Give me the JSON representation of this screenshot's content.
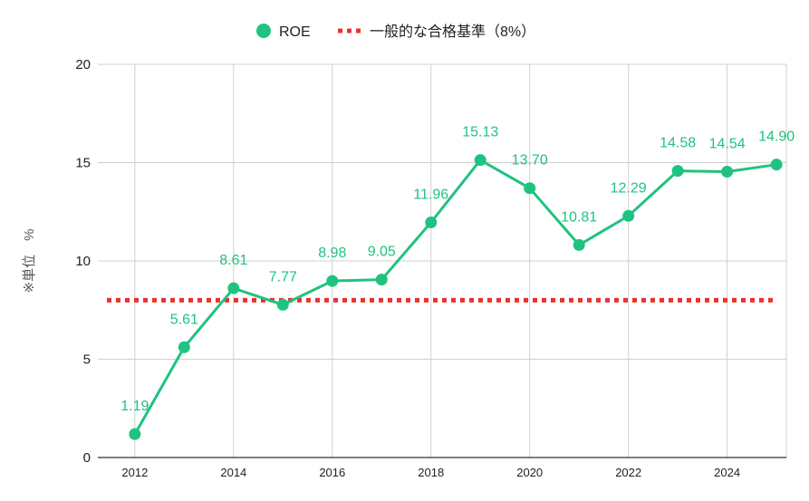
{
  "chart_data": {
    "type": "line",
    "title": "",
    "ylabel": "※単位　%",
    "xlabel": "",
    "ylim": [
      0,
      20
    ],
    "yticks": [
      "0",
      "5",
      "10",
      "15",
      "20"
    ],
    "xlim": [
      2011.25,
      2025.2
    ],
    "xticks": [
      "2012",
      "2014",
      "2016",
      "2018",
      "2020",
      "2022",
      "2024"
    ],
    "grid": true,
    "legend_position": "top-center",
    "series": [
      {
        "name": "ROE",
        "color": "#1fc37f",
        "x": [
          2012,
          2013,
          2014,
          2015,
          2016,
          2017,
          2018,
          2019,
          2020,
          2021,
          2022,
          2023,
          2024,
          2025
        ],
        "values": [
          1.19,
          5.61,
          8.61,
          7.77,
          8.98,
          9.05,
          11.96,
          15.13,
          13.7,
          10.81,
          12.29,
          14.58,
          14.54,
          14.9
        ],
        "labels": [
          "1.19",
          "5.61",
          "8.61",
          "7.77",
          "8.98",
          "9.05",
          "11.96",
          "15.13",
          "13.70",
          "10.81",
          "12.29",
          "14.58",
          "14.54",
          "14.90"
        ]
      },
      {
        "name": "一般的な合格基準（8%）",
        "color": "#e8332e",
        "style": "dotted",
        "constant": 8
      }
    ]
  }
}
